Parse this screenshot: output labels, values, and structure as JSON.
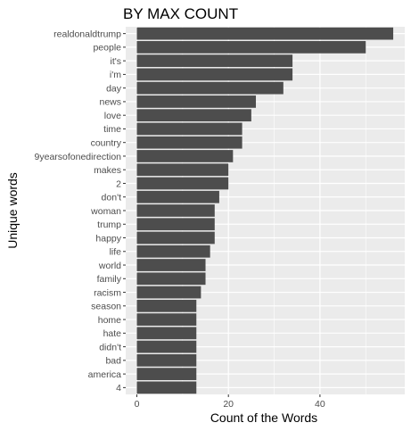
{
  "chart_data": {
    "type": "bar",
    "orientation": "horizontal",
    "title": "BY MAX COUNT",
    "xlabel": "Count of the Words",
    "ylabel": "Unique words",
    "xlim": [
      0,
      58
    ],
    "x_ticks": [
      0,
      20,
      40
    ],
    "grid": true,
    "colors": {
      "panel_background": "#ebebeb",
      "grid_major": "#ffffff",
      "bar_fill": "#4d4d4d"
    },
    "categories": [
      "realdonaldtrump",
      "people",
      "it's",
      "i'm",
      "day",
      "news",
      "love",
      "time",
      "country",
      "9yearsofonedirection",
      "makes",
      "2",
      "don't",
      "woman",
      "trump",
      "happy",
      "life",
      "world",
      "family",
      "racism",
      "season",
      "home",
      "hate",
      "didn't",
      "bad",
      "america",
      "4"
    ],
    "values": [
      56,
      50,
      34,
      34,
      32,
      26,
      25,
      23,
      23,
      21,
      20,
      20,
      18,
      17,
      17,
      17,
      16,
      15,
      15,
      14,
      13,
      13,
      13,
      13,
      13,
      13,
      13
    ]
  }
}
